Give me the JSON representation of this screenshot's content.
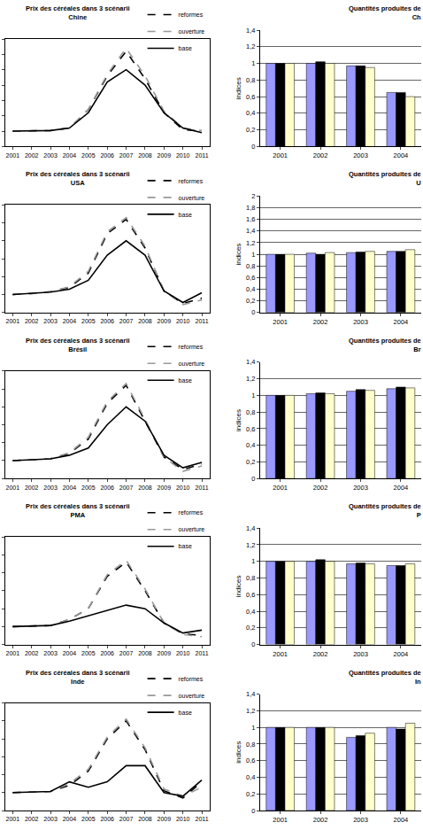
{
  "chart_data": [
    {
      "type": "line",
      "title": "Prix des céréales dans 3 scénarii",
      "subtitle": "Chine",
      "x": [
        2001,
        2002,
        2003,
        2004,
        2005,
        2006,
        2007,
        2008,
        2009,
        2010,
        2011
      ],
      "series": [
        {
          "name": "reformes",
          "color": "#000000",
          "line_style": "dashed",
          "values": [
            1,
            1,
            1.02,
            1.1,
            1.7,
            2.8,
            3.6,
            2.7,
            1.6,
            1.05,
            1.0
          ]
        },
        {
          "name": "ouverture",
          "color": "#999999",
          "line_style": "dashed",
          "values": [
            1,
            1,
            1.02,
            1.1,
            1.7,
            2.85,
            3.7,
            2.8,
            1.65,
            1.1,
            1.02
          ]
        },
        {
          "name": "base",
          "color": "#000000",
          "line_style": "solid",
          "values": [
            1,
            1,
            1.02,
            1.1,
            1.6,
            2.6,
            3.0,
            2.5,
            1.6,
            1.1,
            0.95
          ]
        }
      ],
      "xlim": [
        2000.6,
        2011.4
      ],
      "xticks": [
        2001,
        2002,
        2003,
        2004,
        2005,
        2006,
        2007,
        2008,
        2009,
        2010,
        2011
      ],
      "ylim": [
        0.5,
        4
      ],
      "yticks": [
        0.5,
        1,
        1.5,
        2,
        2.5,
        3,
        3.5,
        4
      ],
      "tick_labels": "x",
      "legend": "top right"
    },
    {
      "type": "line",
      "title": "Prix des céréales dans 3 scénarii",
      "subtitle": "USA",
      "x": [
        2001,
        2002,
        2003,
        2004,
        2005,
        2006,
        2007,
        2008,
        2009,
        2010,
        2011
      ],
      "series": [
        {
          "name": "reformes",
          "color": "#000000",
          "line_style": "dashed",
          "values": [
            1,
            1.03,
            1.08,
            1.2,
            1.6,
            2.7,
            3.1,
            2.3,
            1.1,
            0.75,
            0.9
          ]
        },
        {
          "name": "ouverture",
          "color": "#999999",
          "line_style": "dashed",
          "values": [
            1,
            1.03,
            1.08,
            1.22,
            1.65,
            2.75,
            3.15,
            2.35,
            1.1,
            0.72,
            0.85
          ]
        },
        {
          "name": "base",
          "color": "#000000",
          "line_style": "solid",
          "values": [
            1,
            1.03,
            1.07,
            1.15,
            1.4,
            2.1,
            2.5,
            2.1,
            1.1,
            0.78,
            1.05
          ]
        }
      ],
      "xlim": [
        2000.6,
        2011.4
      ],
      "xticks": [
        2001,
        2002,
        2003,
        2004,
        2005,
        2006,
        2007,
        2008,
        2009,
        2010,
        2011
      ],
      "ylim": [
        0.5,
        3.5
      ],
      "yticks": [
        0.5,
        1,
        1.5,
        2,
        2.5,
        3,
        3.5
      ],
      "tick_labels": "x",
      "legend": "top right"
    },
    {
      "type": "line",
      "title": "Prix des céréales dans 3 scénarii",
      "subtitle": "Brésil",
      "x": [
        2001,
        2002,
        2003,
        2004,
        2005,
        2006,
        2007,
        2008,
        2009,
        2010,
        2011
      ],
      "series": [
        {
          "name": "reformes",
          "color": "#000000",
          "line_style": "dashed",
          "values": [
            1,
            1.03,
            1.05,
            1.2,
            1.6,
            2.6,
            3.1,
            2.1,
            1.1,
            0.75,
            0.9
          ]
        },
        {
          "name": "ouverture",
          "color": "#999999",
          "line_style": "dashed",
          "values": [
            1,
            1.03,
            1.05,
            1.22,
            1.65,
            2.65,
            3.15,
            2.15,
            1.1,
            0.7,
            0.85
          ]
        },
        {
          "name": "base",
          "color": "#000000",
          "line_style": "solid",
          "values": [
            1,
            1.03,
            1.05,
            1.15,
            1.35,
            2.0,
            2.5,
            2.1,
            1.15,
            0.8,
            0.95
          ]
        }
      ],
      "xlim": [
        2000.6,
        2011.4
      ],
      "xticks": [
        2001,
        2002,
        2003,
        2004,
        2005,
        2006,
        2007,
        2008,
        2009,
        2010,
        2011
      ],
      "ylim": [
        0.5,
        3.5
      ],
      "yticks": [
        0.5,
        1,
        1.5,
        2,
        2.5,
        3,
        3.5
      ],
      "tick_labels": "x",
      "legend": "top right"
    },
    {
      "type": "line",
      "title": "Prix des céréales dans 3 scénarii",
      "subtitle": "PMA",
      "x": [
        2001,
        2002,
        2003,
        2004,
        2005,
        2006,
        2007,
        2008,
        2009,
        2010,
        2011
      ],
      "series": [
        {
          "name": "reformes",
          "color": "#000000",
          "line_style": "dashed",
          "values": [
            1,
            1.02,
            1.03,
            1.2,
            1.5,
            2.4,
            2.8,
            2.0,
            1.1,
            0.8,
            0.75
          ]
        },
        {
          "name": "ouverture",
          "color": "#999999",
          "line_style": "dashed",
          "values": [
            1,
            1.02,
            1.03,
            1.2,
            1.5,
            2.45,
            2.85,
            2.05,
            1.1,
            0.78,
            0.72
          ]
        },
        {
          "name": "base",
          "color": "#000000",
          "line_style": "solid",
          "values": [
            1,
            1.02,
            1.03,
            1.15,
            1.3,
            1.45,
            1.6,
            1.5,
            1.1,
            0.82,
            0.9
          ]
        }
      ],
      "xlim": [
        2000.6,
        2011.4
      ],
      "xticks": [
        2001,
        2002,
        2003,
        2004,
        2005,
        2006,
        2007,
        2008,
        2009,
        2010,
        2011
      ],
      "ylim": [
        0.5,
        3.5
      ],
      "yticks": [
        0.5,
        1,
        1.5,
        2,
        2.5,
        3,
        3.5
      ],
      "tick_labels": "x",
      "legend": "top right"
    },
    {
      "type": "line",
      "title": "Prix des céréales dans 3 scénarii",
      "subtitle": "Inde",
      "x": [
        2001,
        2002,
        2003,
        2004,
        2005,
        2006,
        2007,
        2008,
        2009,
        2010,
        2011
      ],
      "series": [
        {
          "name": "reformes",
          "color": "#000000",
          "line_style": "dashed",
          "values": [
            1,
            1.01,
            1.03,
            1.2,
            1.6,
            2.5,
            3.0,
            2.2,
            1.05,
            0.85,
            1.3
          ]
        },
        {
          "name": "ouverture",
          "color": "#999999",
          "line_style": "dashed",
          "values": [
            1,
            1.01,
            1.03,
            1.25,
            1.65,
            2.55,
            3.05,
            2.25,
            1.1,
            0.9,
            1.15
          ]
        },
        {
          "name": "base",
          "color": "#000000",
          "line_style": "solid",
          "values": [
            1,
            1.01,
            1.03,
            1.3,
            1.15,
            1.3,
            1.75,
            1.75,
            1.0,
            0.9,
            1.35
          ]
        }
      ],
      "xlim": [
        2000.6,
        2011.4
      ],
      "xticks": [
        2001,
        2002,
        2003,
        2004,
        2005,
        2006,
        2007,
        2008,
        2009,
        2010,
        2011
      ],
      "ylim": [
        0.5,
        3.5
      ],
      "yticks": [
        0.5,
        1,
        1.5,
        2,
        2.5,
        3,
        3.5
      ],
      "tick_labels": "x",
      "legend": "top right"
    },
    {
      "type": "bar",
      "title": "Quantités produites de",
      "subtitle": "Ch",
      "ylabel": "indices",
      "categories": [
        "2001",
        "2002",
        "2003",
        "2004"
      ],
      "series": [
        {
          "color": "#9999ff",
          "values": [
            1,
            1,
            0.97,
            0.65
          ]
        },
        {
          "color": "#000000",
          "values": [
            1,
            1.02,
            0.97,
            0.65
          ]
        },
        {
          "color": "#ffffcc",
          "values": [
            1,
            1,
            0.95,
            0.6
          ]
        }
      ],
      "ylim": [
        0,
        1.4
      ],
      "yticks": [
        0,
        {
          "value": 0.2,
          "label": "0,2"
        },
        {
          "value": 0.4,
          "label": "0,4"
        },
        {
          "value": 0.6,
          "label": "0,6"
        },
        {
          "value": 0.8,
          "label": "0,8"
        },
        1,
        {
          "value": 1.2,
          "label": "1,2"
        },
        {
          "value": 1.4,
          "label": "1,4"
        }
      ],
      "grid": true
    },
    {
      "type": "bar",
      "title": "Quantités produites de",
      "subtitle": "U",
      "ylabel": "indices",
      "categories": [
        "2001",
        "2002",
        "2003",
        "2004"
      ],
      "series": [
        {
          "color": "#9999ff",
          "values": [
            1,
            1.02,
            1.03,
            1.05
          ]
        },
        {
          "color": "#000000",
          "values": [
            1,
            1,
            1.04,
            1.05
          ]
        },
        {
          "color": "#ffffcc",
          "values": [
            1,
            1.03,
            1.05,
            1.08
          ]
        }
      ],
      "ylim": [
        0,
        2
      ],
      "yticks": [
        0,
        {
          "value": 0.2,
          "label": "0,2"
        },
        {
          "value": 0.4,
          "label": "0,4"
        },
        {
          "value": 0.6,
          "label": "0,6"
        },
        {
          "value": 0.8,
          "label": "0,8"
        },
        1,
        {
          "value": 1.2,
          "label": "1,2"
        },
        {
          "value": 1.4,
          "label": "1,4"
        },
        {
          "value": 1.6,
          "label": "1,6"
        },
        {
          "value": 1.8,
          "label": "1,8"
        },
        2
      ],
      "grid": true
    },
    {
      "type": "bar",
      "title": "Quantités produites de",
      "subtitle": "Br",
      "ylabel": "indices",
      "categories": [
        "2001",
        "2002",
        "2003",
        "2004"
      ],
      "series": [
        {
          "color": "#9999ff",
          "values": [
            1,
            1.02,
            1.05,
            1.08
          ]
        },
        {
          "color": "#000000",
          "values": [
            1,
            1.03,
            1.07,
            1.1
          ]
        },
        {
          "color": "#ffffcc",
          "values": [
            1,
            1.02,
            1.06,
            1.09
          ]
        }
      ],
      "ylim": [
        0,
        1.4
      ],
      "yticks": [
        0,
        {
          "value": 0.2,
          "label": "0,2"
        },
        {
          "value": 0.4,
          "label": "0,4"
        },
        {
          "value": 0.6,
          "label": "0,6"
        },
        {
          "value": 0.8,
          "label": "0,8"
        },
        1,
        {
          "value": 1.2,
          "label": "1,2"
        },
        {
          "value": 1.4,
          "label": "1,4"
        }
      ],
      "grid": true
    },
    {
      "type": "bar",
      "title": "Quantités produites de",
      "subtitle": "P",
      "ylabel": "indices",
      "categories": [
        "2001",
        "2002",
        "2003",
        "2004"
      ],
      "series": [
        {
          "color": "#9999ff",
          "values": [
            1,
            1,
            0.97,
            0.95
          ]
        },
        {
          "color": "#000000",
          "values": [
            1,
            1.02,
            0.98,
            0.95
          ]
        },
        {
          "color": "#ffffcc",
          "values": [
            1,
            1,
            0.97,
            0.97
          ]
        }
      ],
      "ylim": [
        0,
        1.4
      ],
      "yticks": [
        0,
        {
          "value": 0.2,
          "label": "0,2"
        },
        {
          "value": 0.4,
          "label": "0,4"
        },
        {
          "value": 0.6,
          "label": "0,6"
        },
        {
          "value": 0.8,
          "label": "0,8"
        },
        1,
        {
          "value": 1.2,
          "label": "1,2"
        },
        {
          "value": 1.4,
          "label": "1,4"
        }
      ],
      "grid": true
    },
    {
      "type": "bar",
      "title": "Quantités produites de",
      "subtitle": "In",
      "ylabel": "indices",
      "categories": [
        "2001",
        "2002",
        "2003",
        "2004"
      ],
      "series": [
        {
          "color": "#9999ff",
          "values": [
            1,
            1,
            0.88,
            1.0
          ]
        },
        {
          "color": "#000000",
          "values": [
            1,
            1,
            0.9,
            0.98
          ]
        },
        {
          "color": "#ffffcc",
          "values": [
            1,
            1,
            0.93,
            1.05
          ]
        }
      ],
      "ylim": [
        0,
        1.4
      ],
      "yticks": [
        0,
        {
          "value": 0.2,
          "label": "0,2"
        },
        {
          "value": 0.4,
          "label": "0,4"
        },
        {
          "value": 0.6,
          "label": "0,6"
        },
        {
          "value": 0.8,
          "label": "0,8"
        },
        1,
        {
          "value": 1.2,
          "label": "1,2"
        },
        {
          "value": 1.4,
          "label": "1,4"
        }
      ],
      "grid": true
    }
  ]
}
